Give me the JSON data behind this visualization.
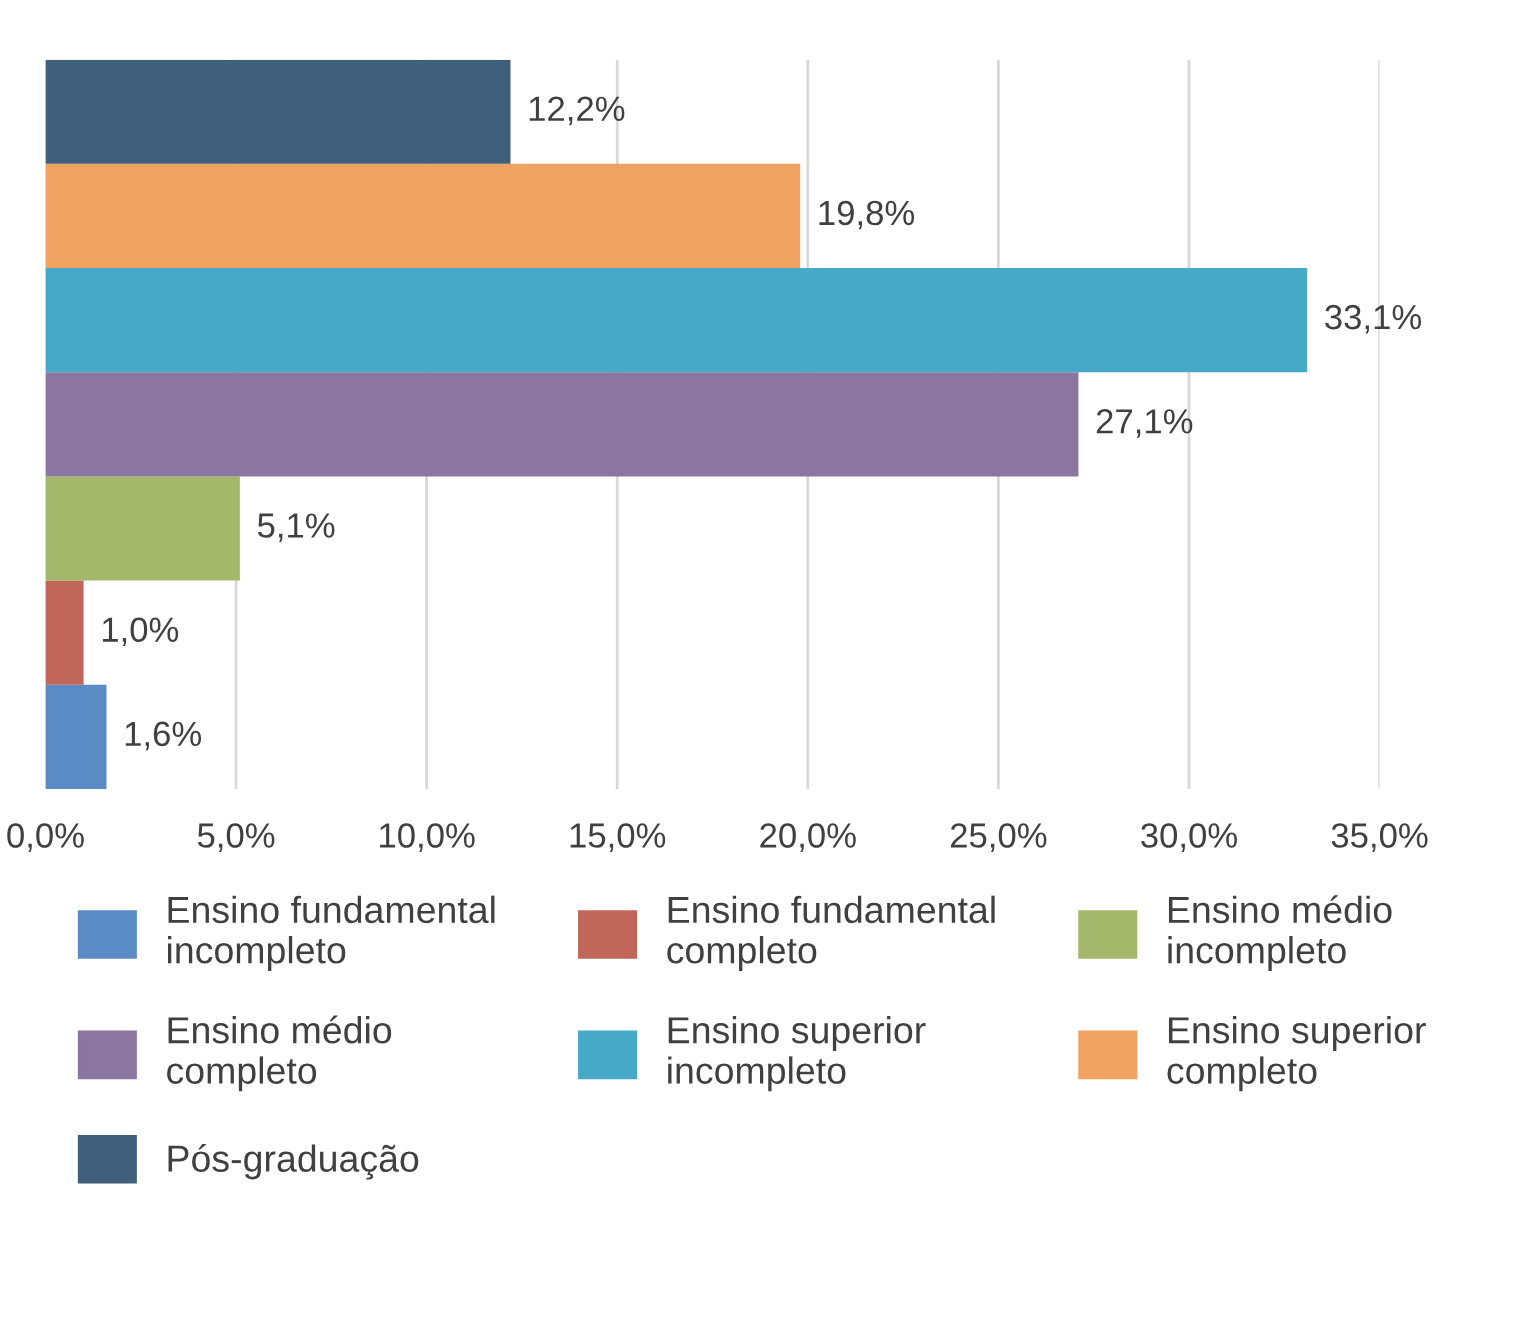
{
  "chart_data": {
    "type": "bar",
    "orientation": "horizontal",
    "categories": [
      null
    ],
    "series": [
      {
        "name": "Ensino fundamental incompleto",
        "color": "#5b8bc5",
        "values": [
          1.6
        ],
        "value_labels": [
          "1,6%"
        ]
      },
      {
        "name": "Ensino fundamental completo",
        "color": "#c0675a",
        "values": [
          1.0
        ],
        "value_labels": [
          "1,0%"
        ]
      },
      {
        "name": "Ensino médio incompleto",
        "color": "#a4b86c",
        "values": [
          5.1
        ],
        "value_labels": [
          "5,1%"
        ]
      },
      {
        "name": "Ensino médio completo",
        "color": "#8a76a0",
        "values": [
          27.1
        ],
        "value_labels": [
          "27,1%"
        ]
      },
      {
        "name": "Ensino superior incompleto",
        "color": "#45a9c7",
        "values": [
          33.1
        ],
        "value_labels": [
          "33,1%"
        ]
      },
      {
        "name": "Ensino superior completo",
        "color": "#f0a262",
        "values": [
          19.8
        ],
        "value_labels": [
          "19,8%"
        ]
      },
      {
        "name": "Pós-graduação",
        "color": "#3f5f7a",
        "values": [
          12.2
        ],
        "value_labels": [
          "12,2%"
        ]
      }
    ],
    "xlim": [
      0,
      35
    ],
    "xticks": [
      {
        "value": 0,
        "label": "0,0%"
      },
      {
        "value": 5,
        "label": "5,0%"
      },
      {
        "value": 10,
        "label": "10,0%"
      },
      {
        "value": 15,
        "label": "15,0%"
      },
      {
        "value": 20,
        "label": "20,0%"
      },
      {
        "value": 25,
        "label": "25,0%"
      },
      {
        "value": 30,
        "label": "30,0%"
      },
      {
        "value": 35,
        "label": "35,0%"
      }
    ],
    "grid": "x",
    "legend": "bottom"
  }
}
